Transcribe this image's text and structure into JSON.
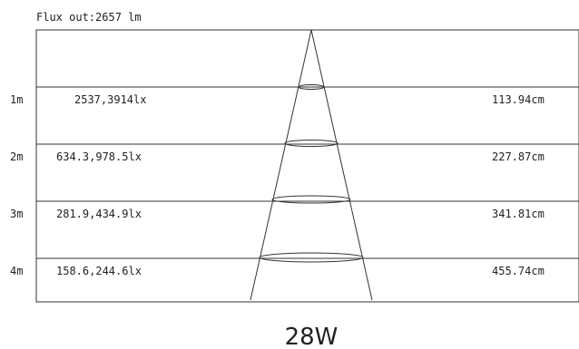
{
  "flux_label": "Flux out:2657 lm",
  "wattage_label": "28W",
  "rows": [
    {
      "distance": "1m",
      "illuminance": "2537,3914lx",
      "diameter": "113.94cm"
    },
    {
      "distance": "2m",
      "illuminance": "634.3,978.5lx",
      "diameter": "227.87cm"
    },
    {
      "distance": "3m",
      "illuminance": "281.9,434.9lx",
      "diameter": "341.81cm"
    },
    {
      "distance": "4m",
      "illuminance": "158.6,244.6lx",
      "diameter": "455.74cm"
    }
  ],
  "colors": {
    "line": "#333333",
    "text": "#222222"
  }
}
